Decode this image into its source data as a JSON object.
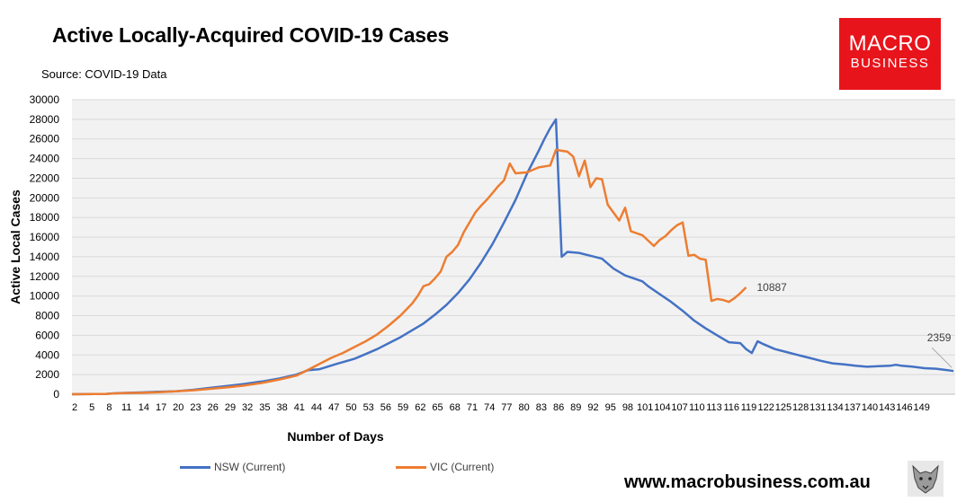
{
  "chart_data": {
    "type": "line",
    "title": "Active Locally-Acquired COVID-19 Cases",
    "subtitle": "Source: COVID-19 Data",
    "xlabel": "Number of Days",
    "ylabel": "Active Local Cases",
    "xlim": [
      2,
      152
    ],
    "ylim": [
      0,
      30000
    ],
    "yticks": [
      0,
      2000,
      4000,
      6000,
      8000,
      10000,
      12000,
      14000,
      16000,
      18000,
      20000,
      22000,
      24000,
      26000,
      28000,
      30000
    ],
    "xtick_labels": [
      "2",
      "5",
      "8",
      "11",
      "14",
      "17",
      "20",
      "23",
      "26",
      "29",
      "32",
      "35",
      "38",
      "41",
      "44",
      "47",
      "50",
      "53",
      "56",
      "59",
      "62",
      "65",
      "68",
      "71",
      "74",
      "77",
      "80",
      "83",
      "86",
      "89",
      "92",
      "95",
      "98",
      "101",
      "104",
      "107",
      "110",
      "113",
      "116",
      "119",
      "122",
      "125",
      "128",
      "131",
      "134",
      "137",
      "140",
      "143",
      "146",
      "149"
    ],
    "grid": "horizontal",
    "legend_position": "bottom",
    "series": [
      {
        "name": "NSW (Current)",
        "color": "#4472c4",
        "end_label": "2359",
        "points": [
          [
            2,
            0
          ],
          [
            8,
            40
          ],
          [
            10,
            120
          ],
          [
            14,
            180
          ],
          [
            17,
            250
          ],
          [
            20,
            300
          ],
          [
            23,
            450
          ],
          [
            26,
            650
          ],
          [
            29,
            850
          ],
          [
            32,
            1050
          ],
          [
            35,
            1300
          ],
          [
            38,
            1600
          ],
          [
            41,
            2000
          ],
          [
            43,
            2450
          ],
          [
            45,
            2550
          ],
          [
            48,
            3100
          ],
          [
            51,
            3600
          ],
          [
            53,
            4100
          ],
          [
            55,
            4600
          ],
          [
            57,
            5200
          ],
          [
            59,
            5800
          ],
          [
            61,
            6500
          ],
          [
            63,
            7200
          ],
          [
            65,
            8100
          ],
          [
            67,
            9100
          ],
          [
            69,
            10300
          ],
          [
            71,
            11700
          ],
          [
            73,
            13400
          ],
          [
            75,
            15300
          ],
          [
            77,
            17500
          ],
          [
            79,
            19800
          ],
          [
            81,
            22500
          ],
          [
            83,
            24800
          ],
          [
            84,
            26000
          ],
          [
            85,
            27100
          ],
          [
            86,
            28000
          ],
          [
            87,
            14000
          ],
          [
            88,
            14500
          ],
          [
            90,
            14400
          ],
          [
            92,
            14100
          ],
          [
            94,
            13800
          ],
          [
            96,
            12800
          ],
          [
            98,
            12100
          ],
          [
            100,
            11700
          ],
          [
            101,
            11500
          ],
          [
            102,
            11000
          ],
          [
            104,
            10200
          ],
          [
            106,
            9400
          ],
          [
            108,
            8500
          ],
          [
            110,
            7500
          ],
          [
            112,
            6700
          ],
          [
            114,
            6000
          ],
          [
            116,
            5300
          ],
          [
            118,
            5200
          ],
          [
            119,
            4600
          ],
          [
            120,
            4200
          ],
          [
            121,
            5400
          ],
          [
            122,
            5100
          ],
          [
            124,
            4600
          ],
          [
            126,
            4300
          ],
          [
            128,
            4000
          ],
          [
            130,
            3700
          ],
          [
            132,
            3400
          ],
          [
            134,
            3150
          ],
          [
            136,
            3050
          ],
          [
            138,
            2900
          ],
          [
            140,
            2800
          ],
          [
            142,
            2850
          ],
          [
            144,
            2900
          ],
          [
            145,
            3000
          ],
          [
            146,
            2900
          ],
          [
            148,
            2800
          ],
          [
            150,
            2650
          ],
          [
            152,
            2600
          ],
          [
            154,
            2450
          ],
          [
            155,
            2359
          ]
        ]
      },
      {
        "name": "VIC (Current)",
        "color": "#ed7d31",
        "end_label": "10887",
        "points": [
          [
            2,
            0
          ],
          [
            8,
            40
          ],
          [
            10,
            100
          ],
          [
            14,
            150
          ],
          [
            17,
            200
          ],
          [
            20,
            300
          ],
          [
            23,
            400
          ],
          [
            26,
            550
          ],
          [
            29,
            700
          ],
          [
            32,
            900
          ],
          [
            35,
            1150
          ],
          [
            38,
            1500
          ],
          [
            41,
            1900
          ],
          [
            43,
            2500
          ],
          [
            45,
            3100
          ],
          [
            47,
            3700
          ],
          [
            49,
            4200
          ],
          [
            51,
            4800
          ],
          [
            53,
            5400
          ],
          [
            55,
            6100
          ],
          [
            57,
            7000
          ],
          [
            59,
            8000
          ],
          [
            61,
            9200
          ],
          [
            62,
            10000
          ],
          [
            63,
            11000
          ],
          [
            64,
            11200
          ],
          [
            65,
            11800
          ],
          [
            66,
            12500
          ],
          [
            67,
            14000
          ],
          [
            68,
            14500
          ],
          [
            69,
            15200
          ],
          [
            70,
            16500
          ],
          [
            71,
            17500
          ],
          [
            72,
            18500
          ],
          [
            73,
            19200
          ],
          [
            74,
            19800
          ],
          [
            75,
            20500
          ],
          [
            76,
            21200
          ],
          [
            77,
            21800
          ],
          [
            78,
            23500
          ],
          [
            79,
            22500
          ],
          [
            81,
            22600
          ],
          [
            83,
            23100
          ],
          [
            85,
            23300
          ],
          [
            86,
            24900
          ],
          [
            87,
            24800
          ],
          [
            88,
            24700
          ],
          [
            89,
            24200
          ],
          [
            90,
            22200
          ],
          [
            91,
            23800
          ],
          [
            92,
            21100
          ],
          [
            93,
            22000
          ],
          [
            94,
            21900
          ],
          [
            95,
            19300
          ],
          [
            96,
            18500
          ],
          [
            97,
            17700
          ],
          [
            98,
            19000
          ],
          [
            99,
            16600
          ],
          [
            101,
            16200
          ],
          [
            103,
            15100
          ],
          [
            104,
            15700
          ],
          [
            105,
            16100
          ],
          [
            106,
            16700
          ],
          [
            107,
            17200
          ],
          [
            108,
            17500
          ],
          [
            109,
            14100
          ],
          [
            110,
            14200
          ],
          [
            111,
            13800
          ],
          [
            112,
            13700
          ],
          [
            113,
            9500
          ],
          [
            114,
            9700
          ],
          [
            115,
            9600
          ],
          [
            116,
            9400
          ],
          [
            117,
            9800
          ],
          [
            118,
            10300
          ],
          [
            119,
            10887
          ]
        ]
      }
    ]
  },
  "footer": {
    "url": "www.macrobusiness.com.au"
  },
  "logo": {
    "line1": "MACRO",
    "line2": "BUSINESS"
  },
  "icons": {
    "logo": "macrobusiness-logo",
    "mascot": "wolf-mascot-icon"
  }
}
